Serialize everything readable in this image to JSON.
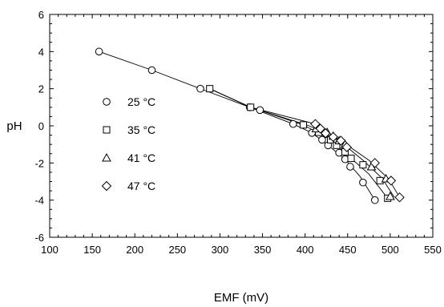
{
  "chart_data": {
    "type": "scatter",
    "xlabel": "EMF (mV)",
    "ylabel": "pH",
    "xlim": [
      100,
      550
    ],
    "ylim": [
      -6,
      6
    ],
    "xticks": [
      100,
      150,
      200,
      250,
      300,
      350,
      400,
      450,
      500,
      550
    ],
    "yticks": [
      -6,
      -4,
      -2,
      0,
      2,
      4,
      6
    ],
    "xticks_minor_step": 10,
    "yticks_minor_step": 0.5,
    "grid": false,
    "legend_position": "left",
    "series": [
      {
        "name": "25 °C",
        "marker": "circle",
        "points": [
          [
            158,
            4
          ],
          [
            220,
            3
          ],
          [
            277,
            2
          ],
          [
            335,
            1
          ],
          [
            347,
            0.85
          ],
          [
            386,
            0.1
          ],
          [
            408,
            -0.38
          ],
          [
            420,
            -0.75
          ],
          [
            427,
            -1.05
          ],
          [
            440,
            -1.45
          ],
          [
            447,
            -1.8
          ],
          [
            453,
            -2.2
          ],
          [
            468,
            -3.05
          ],
          [
            482,
            -4
          ]
        ]
      },
      {
        "name": "35 °C",
        "marker": "square",
        "points": [
          [
            288,
            2
          ],
          [
            336,
            1
          ],
          [
            398,
            0.05
          ],
          [
            416,
            -0.35
          ],
          [
            430,
            -0.75
          ],
          [
            437,
            -1.05
          ],
          [
            447,
            -1.4
          ],
          [
            454,
            -1.75
          ],
          [
            468,
            -2.1
          ],
          [
            488,
            -2.95
          ],
          [
            497,
            -3.9
          ]
        ]
      },
      {
        "name": "41 °C",
        "marker": "triangle",
        "points": [
          [
            413,
            -0.15
          ],
          [
            426,
            -0.35
          ],
          [
            433,
            -0.55
          ],
          [
            440,
            -0.8
          ],
          [
            447,
            -1.0
          ],
          [
            478,
            -2.2
          ],
          [
            495,
            -2.85
          ],
          [
            500,
            -3.8
          ]
        ]
      },
      {
        "name": "47 °C",
        "marker": "diamond",
        "points": [
          [
            412,
            0.1
          ],
          [
            418,
            -0.15
          ],
          [
            424,
            -0.4
          ],
          [
            433,
            -0.6
          ],
          [
            442,
            -0.8
          ],
          [
            449,
            -1.15
          ],
          [
            482,
            -2.0
          ],
          [
            501,
            -2.95
          ],
          [
            511,
            -3.85
          ]
        ]
      }
    ],
    "fit_curves": [
      [
        [
          158,
          4
        ],
        [
          220,
          3
        ],
        [
          277,
          2
        ],
        [
          335,
          1
        ],
        [
          386,
          0.1
        ],
        [
          408,
          -0.38
        ],
        [
          427,
          -1.05
        ],
        [
          447,
          -1.8
        ],
        [
          465,
          -2.75
        ],
        [
          482,
          -4
        ]
      ],
      [
        [
          288,
          2
        ],
        [
          336,
          1
        ],
        [
          398,
          0.05
        ],
        [
          430,
          -0.75
        ],
        [
          454,
          -1.75
        ],
        [
          475,
          -2.6
        ],
        [
          497,
          -3.9
        ]
      ],
      [
        [
          288,
          2
        ],
        [
          336,
          1
        ],
        [
          405,
          0.0
        ],
        [
          440,
          -0.8
        ],
        [
          468,
          -1.85
        ],
        [
          490,
          -2.8
        ],
        [
          505,
          -3.85
        ]
      ],
      [
        [
          288,
          2
        ],
        [
          336,
          1
        ],
        [
          412,
          0.1
        ],
        [
          442,
          -0.8
        ],
        [
          475,
          -1.85
        ],
        [
          498,
          -2.85
        ],
        [
          511,
          -3.85
        ]
      ]
    ]
  }
}
